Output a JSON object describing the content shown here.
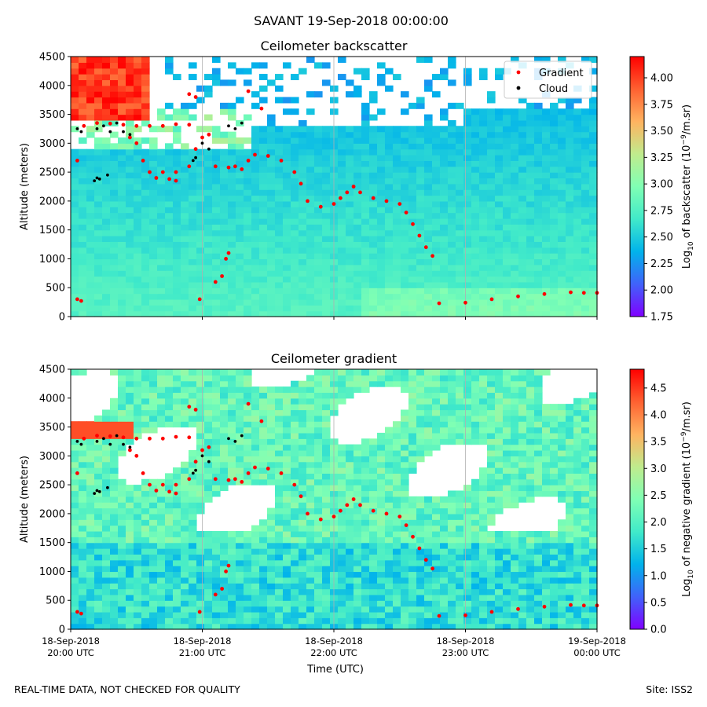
{
  "figure": {
    "suptitle": "SAVANT 19-Sep-2018 00:00:00",
    "footer_left": "REAL-TIME DATA, NOT CHECKED FOR QUALITY",
    "footer_right": "Site: ISS2"
  },
  "colors": {
    "gradient_marker": "#ff0000",
    "cloud_marker": "#000000",
    "colormap": [
      "#8000ff",
      "#4062fa",
      "#01b3eb",
      "#41eac9",
      "#80ffb4",
      "#c0eb8d",
      "#ffb360",
      "#ff6131",
      "#ff0000"
    ],
    "grid": "#b0b0b0"
  },
  "chart_data": [
    {
      "type": "heatmap",
      "title": "Ceilometer backscatter",
      "xlabel": "",
      "ylabel": "Altitude (meters)",
      "xlim": [
        0,
        4
      ],
      "x_tick_values": [
        0,
        1,
        2,
        3,
        4
      ],
      "x_tick_labels": [
        [
          "",
          ""
        ],
        [
          "",
          ""
        ],
        [
          "",
          ""
        ],
        [
          "",
          ""
        ],
        [
          "",
          ""
        ]
      ],
      "ylim": [
        0,
        4500
      ],
      "y_ticks": [
        0,
        500,
        1000,
        1500,
        2000,
        2500,
        3000,
        3500,
        4000,
        4500
      ],
      "colorbar": {
        "label_prefix": "Log",
        "label_sub": "10",
        "label_mid": " of backscatter (10",
        "label_sup": "−9",
        "label_suffix": "/m.sr)",
        "range": [
          1.75,
          4.2
        ],
        "ticks": [
          "1.75",
          "2.00",
          "2.25",
          "2.50",
          "2.75",
          "3.00",
          "3.25",
          "3.50",
          "3.75",
          "4.00"
        ]
      },
      "legend": {
        "location": "top-right",
        "entries": [
          {
            "label": "Gradient",
            "color": "#ff0000"
          },
          {
            "label": "Cloud",
            "color": "#000000"
          }
        ]
      },
      "series": [
        {
          "name": "Gradient",
          "kind": "scatter",
          "points": [
            [
              0.05,
              300
            ],
            [
              0.08,
              270
            ],
            [
              0.05,
              2700
            ],
            [
              0.1,
              3300
            ],
            [
              0.2,
              3350
            ],
            [
              0.3,
              3340
            ],
            [
              0.4,
              3320
            ],
            [
              0.45,
              3100
            ],
            [
              0.5,
              3000
            ],
            [
              0.55,
              2700
            ],
            [
              0.6,
              2500
            ],
            [
              0.7,
              2500
            ],
            [
              0.8,
              2500
            ],
            [
              0.5,
              3300
            ],
            [
              0.6,
              3300
            ],
            [
              0.7,
              3300
            ],
            [
              0.8,
              3330
            ],
            [
              0.9,
              3320
            ],
            [
              0.65,
              2400
            ],
            [
              0.75,
              2380
            ],
            [
              0.8,
              2350
            ],
            [
              0.9,
              2600
            ],
            [
              0.95,
              2900
            ],
            [
              1.0,
              3100
            ],
            [
              1.05,
              3150
            ],
            [
              0.98,
              300
            ],
            [
              1.1,
              2600
            ],
            [
              1.2,
              2580
            ],
            [
              1.25,
              2600
            ],
            [
              1.3,
              2550
            ],
            [
              1.35,
              2700
            ],
            [
              1.4,
              2800
            ],
            [
              1.5,
              2780
            ],
            [
              1.6,
              2700
            ],
            [
              1.7,
              2500
            ],
            [
              1.75,
              2300
            ],
            [
              1.8,
              2000
            ],
            [
              1.9,
              1900
            ],
            [
              2.0,
              1950
            ],
            [
              2.05,
              2050
            ],
            [
              2.1,
              2150
            ],
            [
              2.15,
              2250
            ],
            [
              2.2,
              2150
            ],
            [
              2.3,
              2050
            ],
            [
              2.4,
              2000
            ],
            [
              2.5,
              1950
            ],
            [
              2.55,
              1800
            ],
            [
              2.6,
              1600
            ],
            [
              2.65,
              1400
            ],
            [
              2.7,
              1200
            ],
            [
              2.75,
              1050
            ],
            [
              2.8,
              230
            ],
            [
              3.0,
              240
            ],
            [
              3.2,
              300
            ],
            [
              3.4,
              350
            ],
            [
              3.6,
              390
            ],
            [
              3.8,
              420
            ],
            [
              3.9,
              410
            ],
            [
              4.0,
              410
            ],
            [
              1.18,
              1000
            ],
            [
              1.2,
              1100
            ],
            [
              1.15,
              700
            ],
            [
              1.1,
              600
            ],
            [
              1.35,
              3900
            ],
            [
              1.45,
              3600
            ],
            [
              0.9,
              3850
            ],
            [
              0.95,
              3800
            ]
          ]
        },
        {
          "name": "Cloud",
          "kind": "scatter",
          "points": [
            [
              0.05,
              3250
            ],
            [
              0.08,
              3200
            ],
            [
              0.2,
              3250
            ],
            [
              0.25,
              3300
            ],
            [
              0.3,
              3200
            ],
            [
              0.35,
              3350
            ],
            [
              0.4,
              3200
            ],
            [
              0.45,
              3150
            ],
            [
              0.18,
              2350
            ],
            [
              0.2,
              2400
            ],
            [
              0.22,
              2380
            ],
            [
              0.28,
              2450
            ],
            [
              0.95,
              2750
            ],
            [
              1.0,
              3000
            ],
            [
              1.05,
              2900
            ],
            [
              1.2,
              3300
            ],
            [
              1.25,
              3250
            ],
            [
              1.3,
              3350
            ],
            [
              0.93,
              2700
            ]
          ]
        }
      ]
    },
    {
      "type": "heatmap",
      "title": "Ceilometer gradient",
      "xlabel": "Time (UTC)",
      "ylabel": "Altitude (meters)",
      "xlim": [
        0,
        4
      ],
      "x_tick_values": [
        0,
        1,
        2,
        3,
        4
      ],
      "x_tick_labels": [
        [
          "18-Sep-2018",
          "20:00 UTC"
        ],
        [
          "18-Sep-2018",
          "21:00 UTC"
        ],
        [
          "18-Sep-2018",
          "22:00 UTC"
        ],
        [
          "18-Sep-2018",
          "23:00 UTC"
        ],
        [
          "19-Sep-2018",
          "00:00 UTC"
        ]
      ],
      "ylim": [
        0,
        4500
      ],
      "y_ticks": [
        0,
        500,
        1000,
        1500,
        2000,
        2500,
        3000,
        3500,
        4000,
        4500
      ],
      "colorbar": {
        "label_prefix": "Log",
        "label_sub": "10",
        "label_mid": " of negative gradient (10",
        "label_sup": "−9",
        "label_suffix": "/m.sr)",
        "range": [
          0,
          4.85
        ],
        "ticks": [
          "0.0",
          "0.5",
          "1.0",
          "1.5",
          "2.0",
          "2.5",
          "3.0",
          "3.5",
          "4.0",
          "4.5"
        ]
      },
      "series": [
        {
          "name": "Gradient",
          "kind": "scatter",
          "points": [
            [
              0.05,
              300
            ],
            [
              0.08,
              270
            ],
            [
              0.05,
              2700
            ],
            [
              0.1,
              3300
            ],
            [
              0.2,
              3350
            ],
            [
              0.3,
              3340
            ],
            [
              0.4,
              3320
            ],
            [
              0.45,
              3100
            ],
            [
              0.5,
              3000
            ],
            [
              0.55,
              2700
            ],
            [
              0.6,
              2500
            ],
            [
              0.7,
              2500
            ],
            [
              0.8,
              2500
            ],
            [
              0.5,
              3300
            ],
            [
              0.6,
              3300
            ],
            [
              0.7,
              3300
            ],
            [
              0.8,
              3330
            ],
            [
              0.9,
              3320
            ],
            [
              0.65,
              2400
            ],
            [
              0.75,
              2380
            ],
            [
              0.8,
              2350
            ],
            [
              0.9,
              2600
            ],
            [
              0.95,
              2900
            ],
            [
              1.0,
              3100
            ],
            [
              1.05,
              3150
            ],
            [
              0.98,
              300
            ],
            [
              1.1,
              2600
            ],
            [
              1.2,
              2580
            ],
            [
              1.25,
              2600
            ],
            [
              1.3,
              2550
            ],
            [
              1.35,
              2700
            ],
            [
              1.4,
              2800
            ],
            [
              1.5,
              2780
            ],
            [
              1.6,
              2700
            ],
            [
              1.7,
              2500
            ],
            [
              1.75,
              2300
            ],
            [
              1.8,
              2000
            ],
            [
              1.9,
              1900
            ],
            [
              2.0,
              1950
            ],
            [
              2.05,
              2050
            ],
            [
              2.1,
              2150
            ],
            [
              2.15,
              2250
            ],
            [
              2.2,
              2150
            ],
            [
              2.3,
              2050
            ],
            [
              2.4,
              2000
            ],
            [
              2.5,
              1950
            ],
            [
              2.55,
              1800
            ],
            [
              2.6,
              1600
            ],
            [
              2.65,
              1400
            ],
            [
              2.7,
              1200
            ],
            [
              2.75,
              1050
            ],
            [
              2.8,
              230
            ],
            [
              3.0,
              240
            ],
            [
              3.2,
              300
            ],
            [
              3.4,
              350
            ],
            [
              3.6,
              390
            ],
            [
              3.8,
              420
            ],
            [
              3.9,
              410
            ],
            [
              4.0,
              410
            ],
            [
              1.18,
              1000
            ],
            [
              1.2,
              1100
            ],
            [
              1.15,
              700
            ],
            [
              1.1,
              600
            ],
            [
              1.35,
              3900
            ],
            [
              1.45,
              3600
            ],
            [
              0.9,
              3850
            ],
            [
              0.95,
              3800
            ]
          ]
        },
        {
          "name": "Cloud",
          "kind": "scatter",
          "points": [
            [
              0.05,
              3250
            ],
            [
              0.08,
              3200
            ],
            [
              0.2,
              3250
            ],
            [
              0.25,
              3300
            ],
            [
              0.3,
              3200
            ],
            [
              0.35,
              3350
            ],
            [
              0.4,
              3200
            ],
            [
              0.45,
              3150
            ],
            [
              0.18,
              2350
            ],
            [
              0.2,
              2400
            ],
            [
              0.22,
              2380
            ],
            [
              0.28,
              2450
            ],
            [
              0.95,
              2750
            ],
            [
              1.0,
              3000
            ],
            [
              1.05,
              2900
            ],
            [
              1.2,
              3300
            ],
            [
              1.25,
              3250
            ],
            [
              1.3,
              3350
            ],
            [
              0.93,
              2700
            ]
          ]
        }
      ]
    }
  ]
}
